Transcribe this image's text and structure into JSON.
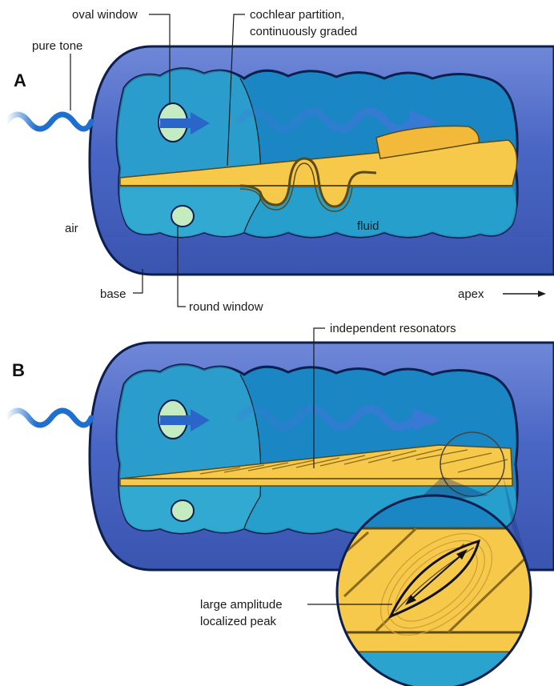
{
  "panels": {
    "a": {
      "letter": "A",
      "labels": {
        "oval_window": "oval window",
        "cochlear_partition_line1": "cochlear partition,",
        "cochlear_partition_line2": "continuously graded",
        "pure_tone": "pure tone",
        "air": "air",
        "fluid": "fluid",
        "base": "base",
        "round_window": "round window",
        "apex": "apex"
      }
    },
    "b": {
      "letter": "B",
      "labels": {
        "independent_resonators": "independent resonators",
        "large_amplitude_line1": "large amplitude",
        "large_amplitude_line2": "localized peak"
      }
    }
  },
  "colors": {
    "outer_tube": "#4a66c4",
    "outer_tube_light": "#7f97de",
    "outline": "#0d1f4f",
    "fluid_chamber": "#1a86c4",
    "fluid_chamber_dark": "#0f5f9c",
    "fluid_lower": "#2aa3cf",
    "partition": "#f7c94a",
    "partition_edge": "#5b4a13",
    "window": "#c5ecc0",
    "wave": "#1f6fd0",
    "arrow": "#2a66c9"
  },
  "icons": {
    "pure_tone_wave": "sine-wave-icon",
    "apex_arrow": "arrow-right-icon",
    "amplitude_arrow": "double-headed-arrow-icon"
  }
}
